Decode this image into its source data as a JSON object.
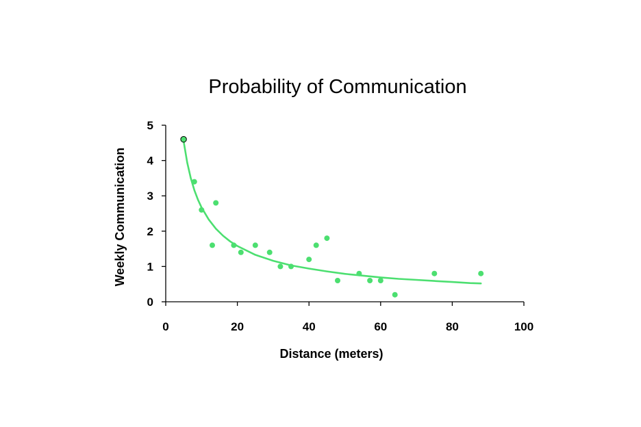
{
  "chart_data": {
    "type": "scatter",
    "title": "Probability of Communication",
    "xlabel": "Distance (meters)",
    "ylabel": "Weekly Communication",
    "xlim": [
      0,
      100
    ],
    "ylim": [
      0,
      5
    ],
    "x_ticks": [
      0,
      20,
      40,
      60,
      80,
      100
    ],
    "y_ticks": [
      0,
      1,
      2,
      3,
      4,
      5
    ],
    "grid": false,
    "colors": {
      "points": "#4cdf70",
      "trend": "#4cdf70",
      "highlight_outline": "#000000"
    },
    "series": [
      {
        "type": "scatter",
        "x": [
          5,
          8,
          10,
          13,
          14,
          19,
          21,
          25,
          29,
          32,
          35,
          40,
          42,
          45,
          48,
          54,
          57,
          60,
          64,
          75,
          88
        ],
        "y": [
          4.6,
          3.4,
          2.6,
          1.6,
          2.8,
          1.6,
          1.4,
          1.6,
          1.4,
          1.0,
          1.0,
          1.2,
          1.6,
          1.8,
          0.6,
          0.8,
          0.6,
          0.6,
          0.2,
          0.8,
          0.8
        ],
        "highlighted_index": 0
      },
      {
        "type": "line",
        "x": [
          5,
          6,
          7,
          8,
          9,
          10,
          12,
          14,
          16,
          18,
          20,
          25,
          30,
          35,
          40,
          45,
          50,
          55,
          60,
          65,
          70,
          75,
          80,
          85,
          88
        ],
        "y": [
          4.55,
          3.94,
          3.5,
          3.16,
          2.89,
          2.67,
          2.33,
          2.07,
          1.87,
          1.71,
          1.58,
          1.33,
          1.16,
          1.03,
          0.94,
          0.86,
          0.79,
          0.74,
          0.69,
          0.65,
          0.62,
          0.59,
          0.56,
          0.53,
          0.52
        ]
      }
    ]
  }
}
